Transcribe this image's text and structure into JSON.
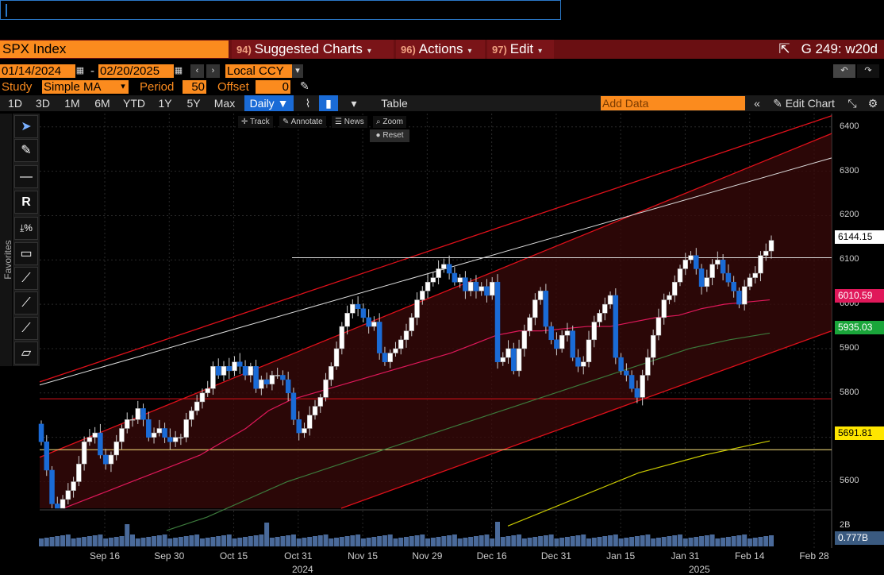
{
  "header": {
    "ticker": "SPX Index",
    "menus": [
      {
        "num": "94)",
        "label": "Suggested Charts"
      },
      {
        "num": "96)",
        "label": "Actions"
      },
      {
        "num": "97)",
        "label": "Edit"
      }
    ],
    "right_label": "G 249: w20d"
  },
  "range": {
    "start": "01/14/2024",
    "sep": "-",
    "end": "02/20/2025",
    "currency": "Local CCY"
  },
  "study": {
    "label": "Study",
    "type": "Simple MA",
    "period_label": "Period",
    "period": "50",
    "offset_label": "Offset",
    "offset": "0"
  },
  "toolbar": {
    "periods": [
      "1D",
      "3D",
      "1M",
      "6M",
      "YTD",
      "1Y",
      "5Y",
      "Max"
    ],
    "frequency": "Daily ▼",
    "table": "Table",
    "add_data_placeholder": "Add Data",
    "edit_chart": "Edit Chart"
  },
  "mini_toolbar": {
    "track": "Track",
    "annotate": "Annotate",
    "news": "News",
    "zoom": "Zoom",
    "reset": "Reset"
  },
  "favorites_label": "Favorites",
  "colors": {
    "accent": "#fb8b1e",
    "bar": "#7a1418",
    "blue": "#1a6bd6"
  },
  "price_tags": [
    {
      "value": "6144.15",
      "bg": "#ffffff",
      "fg": "#000000"
    },
    {
      "value": "6010.59",
      "bg": "#e0185a",
      "fg": "#ffffff"
    },
    {
      "value": "5935.03",
      "bg": "#1aa53a",
      "fg": "#ffffff"
    },
    {
      "value": "5691.81",
      "bg": "#ffe600",
      "fg": "#000000"
    }
  ],
  "volume_labels": {
    "max": "2B",
    "current": "0.777B"
  },
  "chart_data": {
    "type": "candlestick",
    "y_ticks": [
      5600,
      5700,
      5800,
      5900,
      6000,
      6100,
      6200,
      6300,
      6400
    ],
    "ylim": [
      5540,
      6430
    ],
    "x_ticks": [
      "Sep 16",
      "Sep 30",
      "Oct 15",
      "Oct 31",
      "Nov 15",
      "Nov 29",
      "Dec 16",
      "Dec 31",
      "Jan 15",
      "Jan 31",
      "Feb 14",
      "Feb 28"
    ],
    "years": [
      "2024",
      "2025"
    ],
    "closes": [
      5690,
      5626,
      5550,
      5540,
      5560,
      5580,
      5600,
      5640,
      5690,
      5700,
      5710,
      5660,
      5640,
      5660,
      5690,
      5720,
      5740,
      5740,
      5765,
      5740,
      5700,
      5710,
      5720,
      5700,
      5690,
      5700,
      5700,
      5740,
      5760,
      5780,
      5800,
      5810,
      5860,
      5840,
      5860,
      5850,
      5870,
      5860,
      5840,
      5860,
      5810,
      5830,
      5820,
      5840,
      5840,
      5830,
      5800,
      5740,
      5710,
      5720,
      5750,
      5770,
      5790,
      5830,
      5860,
      5900,
      5950,
      5980,
      6000,
      5990,
      5970,
      5950,
      5960,
      5890,
      5870,
      5890,
      5900,
      5920,
      5940,
      5970,
      6010,
      6030,
      6050,
      6060,
      6080,
      6090,
      6070,
      6050,
      6060,
      6030,
      6050,
      6030,
      6040,
      6020,
      6050,
      5870,
      5880,
      5900,
      5850,
      5900,
      5940,
      5970,
      6010,
      6030,
      5950,
      5920,
      5900,
      5930,
      5940,
      5880,
      5860,
      5870,
      5920,
      5960,
      5980,
      6000,
      6020,
      5880,
      5850,
      5840,
      5810,
      5790,
      5840,
      5880,
      5930,
      5970,
      6010,
      6020,
      6050,
      6080,
      6100,
      6110,
      6080,
      6040,
      6060,
      6090,
      6100,
      6070,
      6050,
      6030,
      6000,
      6040,
      6060,
      6070,
      6110,
      6120,
      6144.15
    ],
    "sma_50": [
      5540,
      5560,
      5580,
      5600,
      5620,
      5640,
      5660,
      5690,
      5720,
      5760,
      5785,
      5800,
      5815,
      5830,
      5845,
      5860,
      5875,
      5890,
      5910,
      5930,
      5940,
      5940,
      5945,
      5950,
      5950,
      5960,
      5970,
      5975,
      5990,
      6000,
      6005,
      6010
    ],
    "sma_100": [
      5490,
      5520,
      5560,
      5600,
      5630,
      5660,
      5690,
      5720,
      5750,
      5780,
      5810,
      5840,
      5870,
      5900,
      5920,
      5935
    ],
    "sma_200": [
      5500,
      5560,
      5620,
      5660,
      5691.81
    ],
    "levels": {
      "white_horizontal": 6105,
      "red_horizontal": 5787,
      "yellow_horizontal": 5672
    }
  }
}
